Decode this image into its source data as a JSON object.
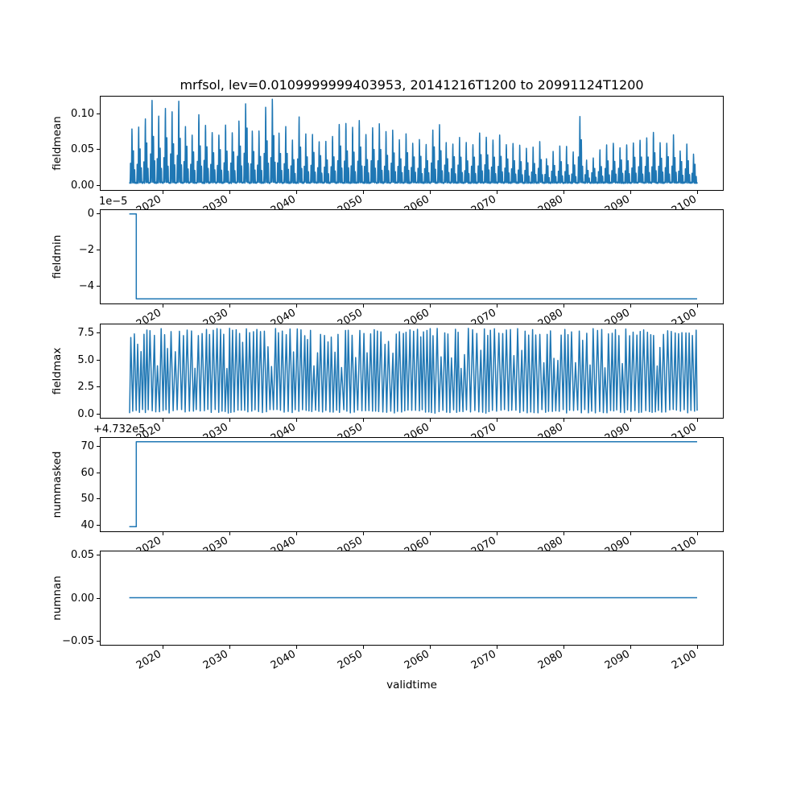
{
  "figure": {
    "title": "mrfsol, lev=0.0109999999403953, 20141216T1200 to 20991124T1200",
    "xlabel": "validtime",
    "line_color": "#1f77b4",
    "background": "#ffffff"
  },
  "chart_data": {
    "type": "line",
    "title": "mrfsol, lev=0.0109999999403953, 20141216T1200 to 20991124T1200",
    "legend": "none",
    "grid": false,
    "x_axis": {
      "label": "validtime",
      "xlim": [
        2010.55,
        2103.75
      ],
      "ticks": [
        2020,
        2030,
        2040,
        2050,
        2060,
        2070,
        2080,
        2090,
        2100
      ],
      "tick_labels": [
        "2020",
        "2030",
        "2040",
        "2050",
        "2060",
        "2070",
        "2080",
        "2090",
        "2100"
      ],
      "tick_rotation_deg": 30,
      "data_start": 2014.96,
      "data_end": 2099.9
    },
    "panels": [
      {
        "name": "fieldmean",
        "ylabel": "fieldmean",
        "ytick_labels": [
          "0.00",
          "0.05",
          "0.10"
        ],
        "ytick_values": [
          0,
          0.05,
          0.1
        ],
        "ylim": [
          -0.0075,
          0.125
        ],
        "series_kind": "annual_spikes",
        "baseline": 0.002,
        "spike_seed": 11,
        "peak_years_start": 2015,
        "annual_peaks": [
          0.078,
          0.082,
          0.09,
          0.117,
          0.088,
          0.107,
          0.105,
          0.11,
          0.088,
          0.075,
          0.092,
          0.085,
          0.078,
          0.075,
          0.078,
          0.08,
          0.096,
          0.123,
          0.078,
          0.07,
          0.105,
          0.11,
          0.073,
          0.076,
          0.065,
          0.088,
          0.072,
          0.07,
          0.065,
          0.062,
          0.07,
          0.087,
          0.086,
          0.075,
          0.094,
          0.065,
          0.085,
          0.084,
          0.07,
          0.075,
          0.064,
          0.07,
          0.06,
          0.062,
          0.058,
          0.084,
          0.08,
          0.065,
          0.06,
          0.068,
          0.055,
          0.062,
          0.07,
          0.072,
          0.06,
          0.065,
          0.056,
          0.06,
          0.055,
          0.048,
          0.05,
          0.056,
          0.04,
          0.045,
          0.05,
          0.05,
          0.042,
          0.102,
          0.036,
          0.04,
          0.045,
          0.055,
          0.055,
          0.057,
          0.055,
          0.065,
          0.06,
          0.062,
          0.07,
          0.065,
          0.062,
          0.065,
          0.05,
          0.055,
          0.045
        ]
      },
      {
        "name": "fieldmin",
        "ylabel": "fieldmin",
        "offset_text": "1e−5",
        "unit_scale": "1e-5",
        "ytick_labels": [
          "0",
          "−2",
          "−4"
        ],
        "ytick_values": [
          0,
          -2,
          -4
        ],
        "ylim": [
          -5.04,
          0.24
        ],
        "series_kind": "step",
        "step_x": [
          2014.96,
          2016.0,
          2016.0,
          2099.9
        ],
        "step_y": [
          0,
          0,
          -4.8,
          -4.8
        ],
        "actual_values": [
          0,
          -4.8e-05
        ]
      },
      {
        "name": "fieldmax",
        "ylabel": "fieldmax",
        "ytick_labels": [
          "0.0",
          "2.5",
          "5.0",
          "7.5"
        ],
        "ytick_values": [
          0,
          2.5,
          5.0,
          7.5
        ],
        "ylim": [
          -0.4,
          8.4
        ],
        "series_kind": "oscillation",
        "osc": {
          "seed": 7,
          "period_years": 0.52,
          "top_range": [
            7.3,
            8.0
          ],
          "mid_top_range": [
            4.2,
            7.2
          ],
          "mid_top_prob": 0.3,
          "bottom_range": [
            0.0,
            0.35
          ]
        }
      },
      {
        "name": "nummasked",
        "ylabel": "nummasked",
        "offset_text": "+4.732e5",
        "offset_value": 473200,
        "ytick_labels": [
          "40",
          "50",
          "60",
          "70"
        ],
        "ytick_values": [
          40,
          50,
          60,
          70
        ],
        "ylim": [
          37.35,
          73.65
        ],
        "series_kind": "step",
        "step_x": [
          2014.96,
          2016.0,
          2016.0,
          2099.9
        ],
        "step_y": [
          39,
          39,
          72,
          72
        ],
        "actual_values": [
          473239,
          473272
        ]
      },
      {
        "name": "numnan",
        "ylabel": "numnan",
        "ytick_labels": [
          "−0.05",
          "0.00",
          "0.05"
        ],
        "ytick_values": [
          -0.05,
          0,
          0.05
        ],
        "ylim": [
          -0.055,
          0.055
        ],
        "series_kind": "step",
        "step_x": [
          2014.96,
          2099.9
        ],
        "step_y": [
          0,
          0
        ],
        "actual_values": [
          0
        ]
      }
    ]
  }
}
